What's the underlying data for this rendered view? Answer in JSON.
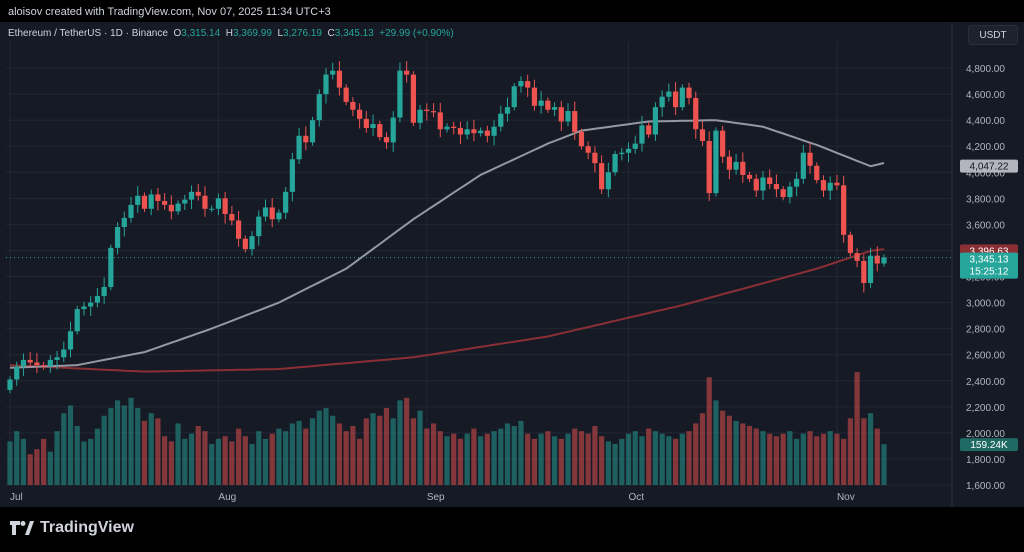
{
  "caption": "aloisov created with TradingView.com, Nov 07, 2025 11:34 UTC+3",
  "legend": {
    "pair": "Ethereum / TetherUS · 1D · Binance",
    "o_label": "O",
    "o": "3,315.14",
    "h_label": "H",
    "h": "3,369.99",
    "l_label": "L",
    "l": "3,276.19",
    "c_label": "C",
    "c": "3,345.13",
    "change": "+29.99 (+0.90%)"
  },
  "currency": "USDT",
  "brand": "TradingView",
  "colors": {
    "up": "#26a69a",
    "down": "#ef5350",
    "bg": "#161a25",
    "grid": "#232734",
    "ma50": "#9598a1",
    "ma200": "#8a2f34"
  },
  "chart_data": {
    "type": "candlestick",
    "title": "Ethereum / TetherUS · 1D · Binance",
    "ylim": [
      1600,
      5000
    ],
    "y_ticks": [
      1600,
      1800,
      2000,
      2200,
      2400,
      2600,
      2800,
      3000,
      3200,
      3400,
      3600,
      3800,
      4000,
      4200,
      4400,
      4600,
      4800
    ],
    "y_tick_labels": [
      "1,600.00",
      "1,800.00",
      "2,000.00",
      "2,200.00",
      "2,400.00",
      "2,600.00",
      "2,800.00",
      "3,000.00",
      "3,200.00",
      "3,400.00",
      "3,600.00",
      "3,800.00",
      "4,000.00",
      "4,200.00",
      "4,400.00",
      "4,600.00",
      "4,800.00"
    ],
    "x_ticks": [
      {
        "index": 0,
        "label": "Jul"
      },
      {
        "index": 31,
        "label": "Aug"
      },
      {
        "index": 62,
        "label": "Sep"
      },
      {
        "index": 92,
        "label": "Oct"
      },
      {
        "index": 123,
        "label": "Nov"
      }
    ],
    "closes": [
      2410,
      2510,
      2560,
      2540,
      2520,
      2510,
      2560,
      2580,
      2640,
      2780,
      2950,
      2970,
      3000,
      3050,
      3120,
      3420,
      3580,
      3650,
      3750,
      3820,
      3720,
      3830,
      3780,
      3750,
      3700,
      3760,
      3790,
      3850,
      3820,
      3720,
      3720,
      3800,
      3680,
      3630,
      3490,
      3410,
      3510,
      3660,
      3730,
      3640,
      3690,
      3850,
      4100,
      4280,
      4230,
      4400,
      4600,
      4750,
      4780,
      4650,
      4540,
      4480,
      4410,
      4340,
      4370,
      4270,
      4230,
      4420,
      4780,
      4750,
      4380,
      4480,
      4470,
      4460,
      4330,
      4350,
      4340,
      4290,
      4330,
      4300,
      4320,
      4280,
      4350,
      4450,
      4500,
      4660,
      4700,
      4650,
      4510,
      4550,
      4480,
      4500,
      4390,
      4470,
      4310,
      4200,
      4150,
      4070,
      3870,
      4000,
      4140,
      4150,
      4180,
      4220,
      4360,
      4290,
      4500,
      4580,
      4620,
      4500,
      4650,
      4570,
      4330,
      4240,
      3840,
      4320,
      4120,
      4020,
      4080,
      3980,
      3950,
      3860,
      3960,
      3910,
      3870,
      3810,
      3890,
      3950,
      4150,
      4050,
      3940,
      3860,
      3920,
      3900,
      3520,
      3380,
      3320,
      3150,
      3360,
      3300,
      3345
    ],
    "volumes_k": [
      170,
      210,
      180,
      120,
      140,
      180,
      130,
      210,
      280,
      310,
      230,
      170,
      180,
      220,
      270,
      300,
      330,
      310,
      340,
      300,
      250,
      280,
      260,
      190,
      170,
      240,
      180,
      200,
      230,
      210,
      160,
      180,
      190,
      170,
      220,
      190,
      160,
      210,
      180,
      200,
      220,
      210,
      240,
      250,
      220,
      260,
      290,
      300,
      270,
      240,
      210,
      230,
      180,
      260,
      280,
      270,
      300,
      260,
      330,
      340,
      260,
      290,
      220,
      240,
      210,
      190,
      200,
      180,
      200,
      220,
      190,
      200,
      210,
      220,
      240,
      230,
      250,
      200,
      180,
      200,
      210,
      190,
      180,
      200,
      220,
      210,
      200,
      230,
      190,
      170,
      160,
      180,
      200,
      210,
      190,
      220,
      210,
      200,
      190,
      180,
      200,
      210,
      240,
      280,
      420,
      330,
      290,
      270,
      250,
      240,
      230,
      220,
      210,
      200,
      190,
      200,
      210,
      180,
      200,
      210,
      190,
      200,
      210,
      200,
      180,
      260,
      440,
      260,
      280,
      220,
      159.24
    ],
    "volume_last_label": "159.24K",
    "ma50_anchors": [
      [
        0,
        2500
      ],
      [
        10,
        2520
      ],
      [
        20,
        2620
      ],
      [
        30,
        2800
      ],
      [
        40,
        3000
      ],
      [
        50,
        3260
      ],
      [
        60,
        3640
      ],
      [
        70,
        3980
      ],
      [
        80,
        4220
      ],
      [
        85,
        4320
      ],
      [
        95,
        4390
      ],
      [
        105,
        4400
      ],
      [
        112,
        4350
      ],
      [
        120,
        4210
      ],
      [
        128,
        4047
      ]
    ],
    "ma200_anchors": [
      [
        0,
        2520
      ],
      [
        20,
        2470
      ],
      [
        40,
        2490
      ],
      [
        60,
        2580
      ],
      [
        80,
        2740
      ],
      [
        100,
        2980
      ],
      [
        120,
        3260
      ],
      [
        128,
        3396.63
      ]
    ],
    "price_labels": [
      {
        "value": 4047.22,
        "text": "4,047.22",
        "kind": "ma50"
      },
      {
        "value": 3396.63,
        "text": "3,396.63",
        "kind": "ma200"
      },
      {
        "value": 3345.13,
        "text": "3,345.13",
        "kind": "last"
      }
    ],
    "countdown": "15:25:12"
  }
}
